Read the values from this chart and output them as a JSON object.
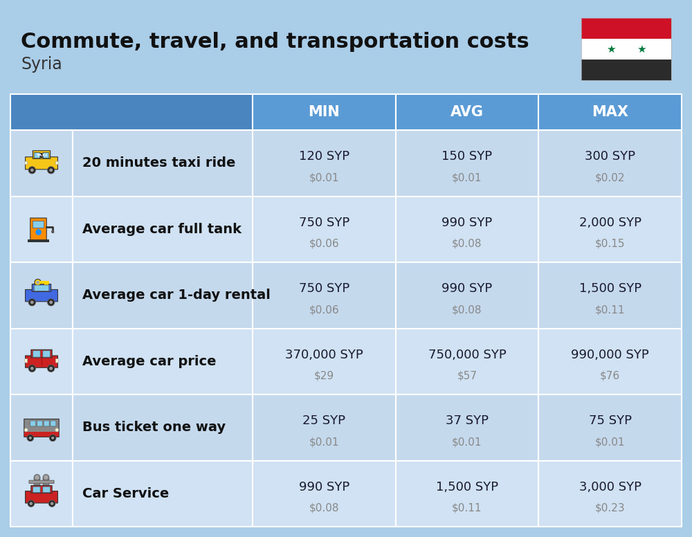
{
  "title": "Commute, travel, and transportation costs",
  "subtitle": "Syria",
  "bg_color": "#aacde8",
  "header_bg": "#5b9bd5",
  "header_text": "#ffffff",
  "cell_bg_odd": "#c5d9ed",
  "cell_bg_even": "#d0e2f3",
  "data_cell_bg_odd": "#c8dcee",
  "data_cell_bg_even": "#d4e6f5",
  "label_text_color": "#111111",
  "syp_text_color": "#1a1a2e",
  "usd_text_color": "#888888",
  "divider_color": "#ffffff",
  "columns": [
    "MIN",
    "AVG",
    "MAX"
  ],
  "rows": [
    {
      "label": "20 minutes taxi ride",
      "min_syp": "120 SYP",
      "min_usd": "$0.01",
      "avg_syp": "150 SYP",
      "avg_usd": "$0.01",
      "max_syp": "300 SYP",
      "max_usd": "$0.02"
    },
    {
      "label": "Average car full tank",
      "min_syp": "750 SYP",
      "min_usd": "$0.06",
      "avg_syp": "990 SYP",
      "avg_usd": "$0.08",
      "max_syp": "2,000 SYP",
      "max_usd": "$0.15"
    },
    {
      "label": "Average car 1-day rental",
      "min_syp": "750 SYP",
      "min_usd": "$0.06",
      "avg_syp": "990 SYP",
      "avg_usd": "$0.08",
      "max_syp": "1,500 SYP",
      "max_usd": "$0.11"
    },
    {
      "label": "Average car price",
      "min_syp": "370,000 SYP",
      "min_usd": "$29",
      "avg_syp": "750,000 SYP",
      "avg_usd": "$57",
      "max_syp": "990,000 SYP",
      "max_usd": "$76"
    },
    {
      "label": "Bus ticket one way",
      "min_syp": "25 SYP",
      "min_usd": "$0.01",
      "avg_syp": "37 SYP",
      "avg_usd": "$0.01",
      "max_syp": "75 SYP",
      "max_usd": "$0.01"
    },
    {
      "label": "Car Service",
      "min_syp": "990 SYP",
      "min_usd": "$0.08",
      "avg_syp": "1,500 SYP",
      "avg_usd": "$0.11",
      "max_syp": "3,000 SYP",
      "max_usd": "$0.23"
    }
  ]
}
